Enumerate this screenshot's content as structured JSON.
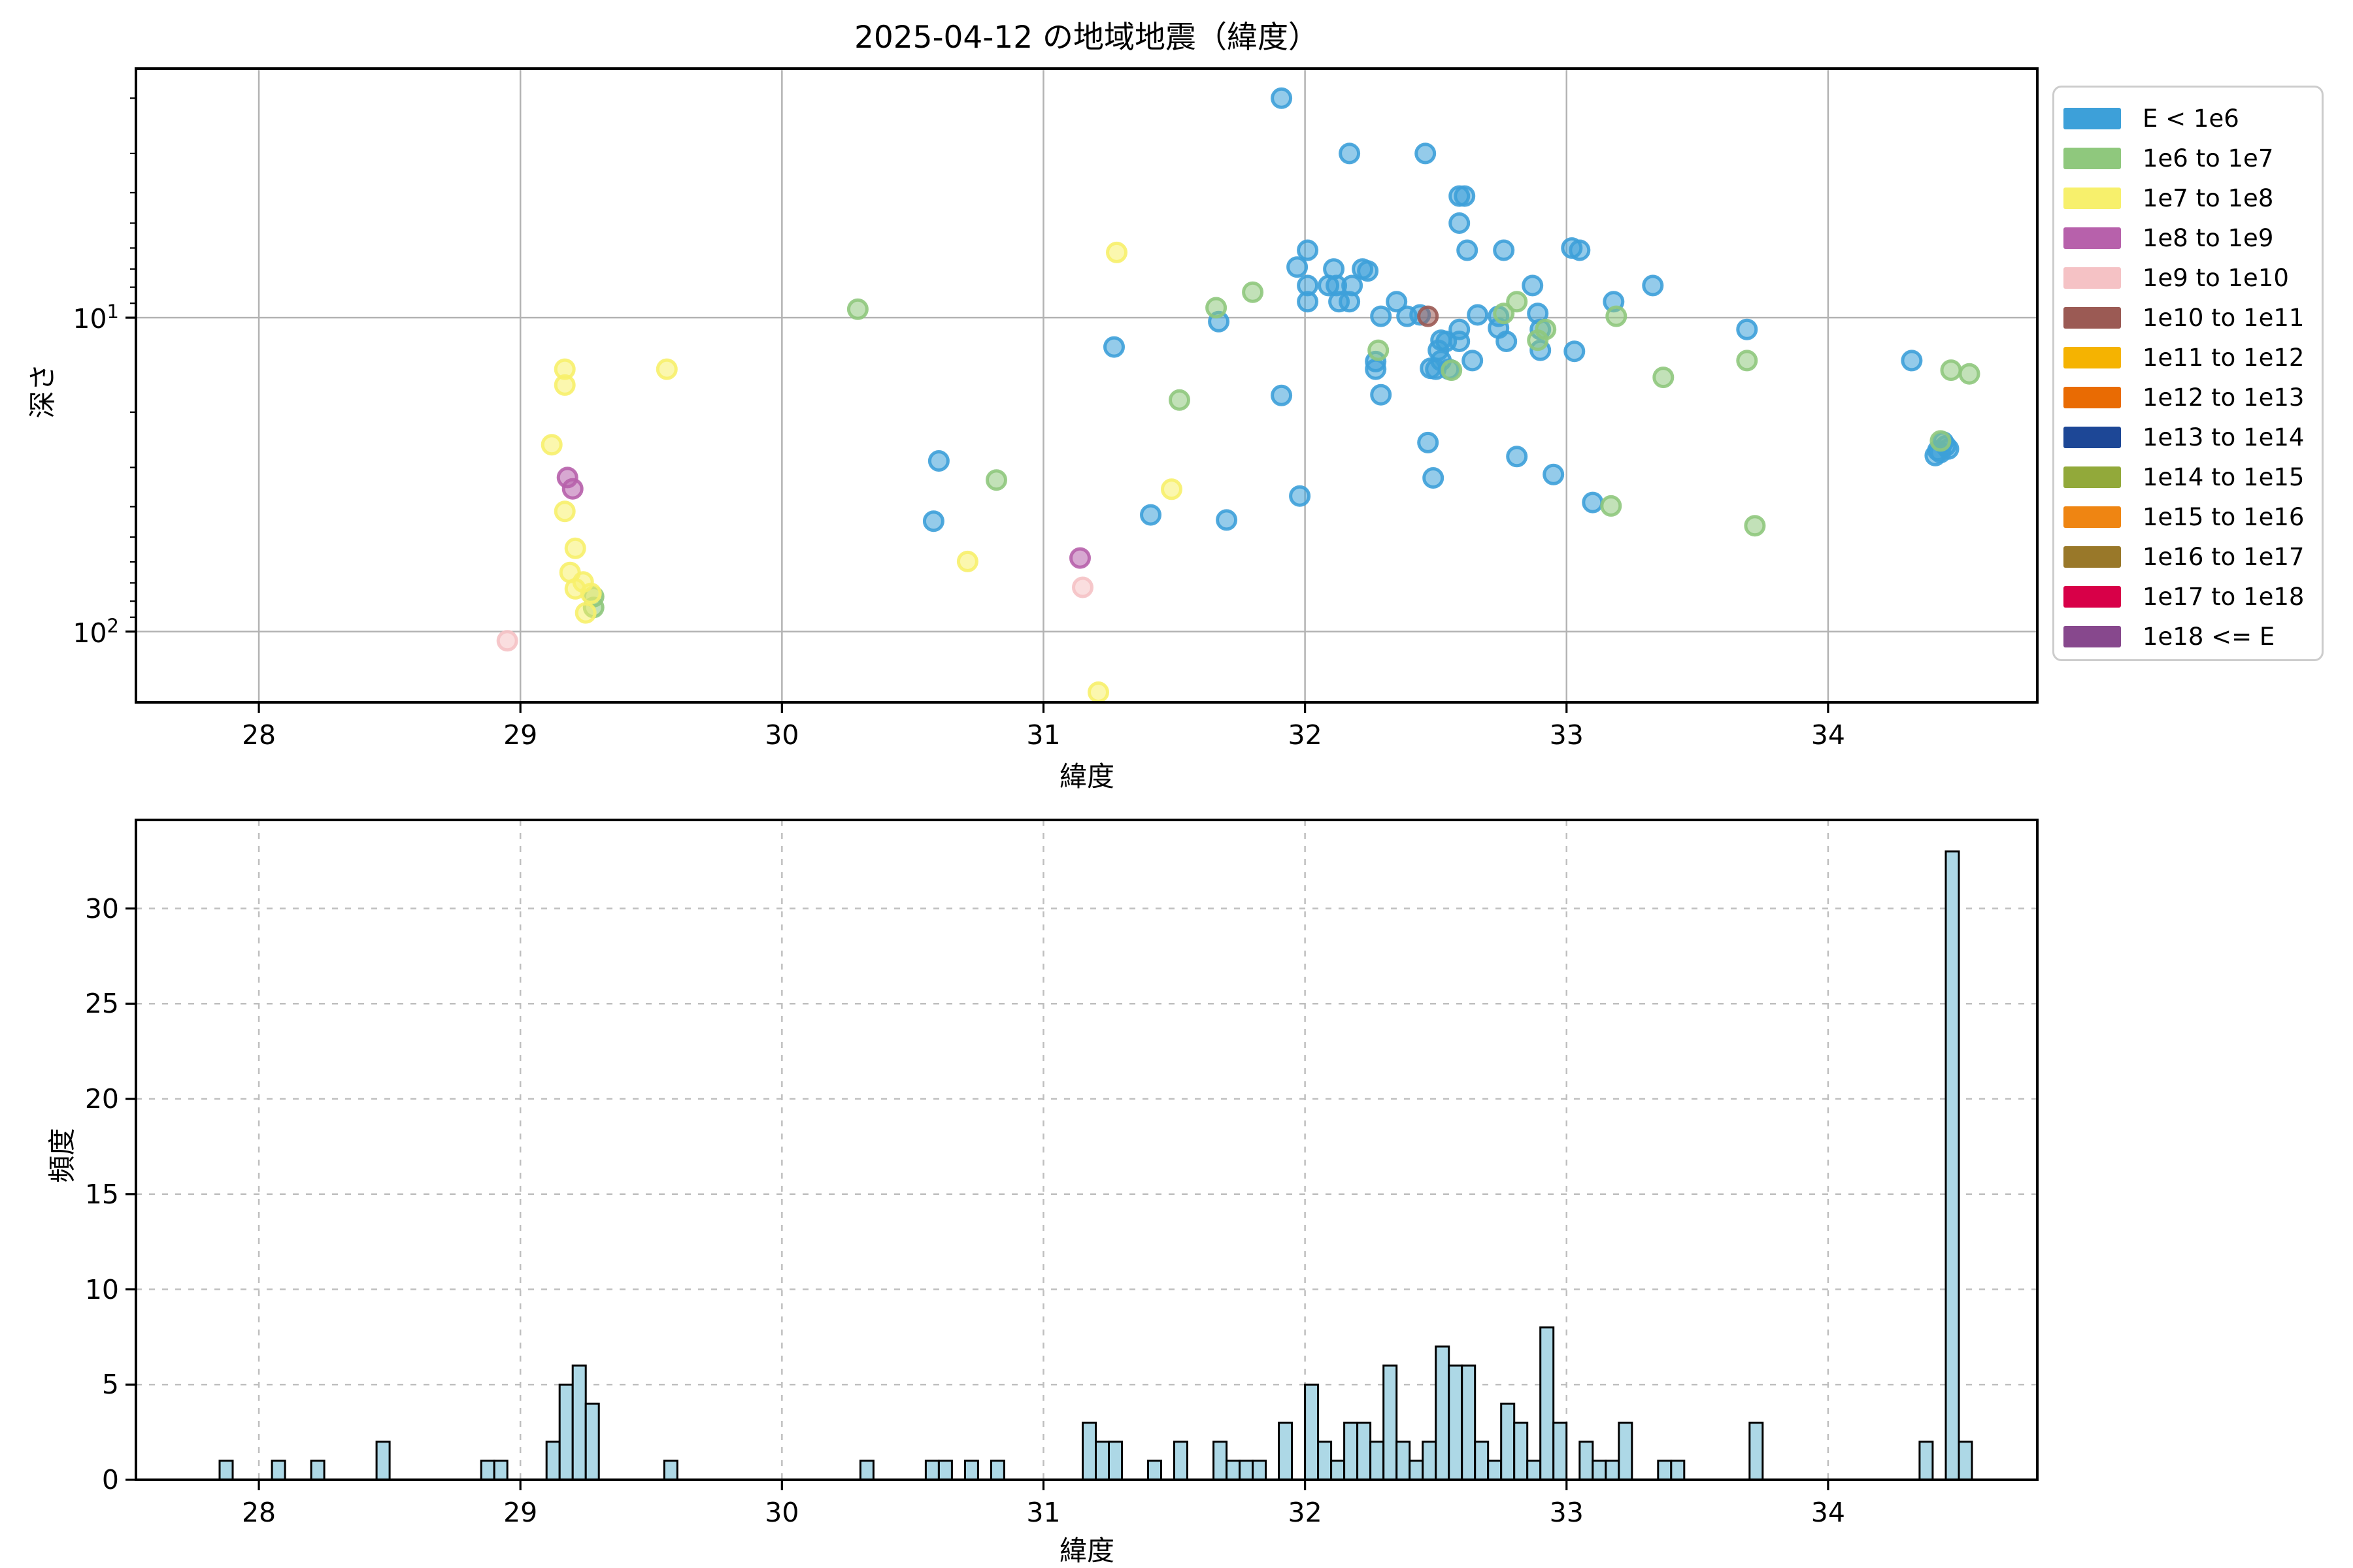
{
  "figure_title": "2025-04-12 の地域地震（緯度）",
  "chart_data": [
    {
      "type": "scatter",
      "title": "2025-04-12 の地域地震（緯度）",
      "xlabel": "緯度",
      "ylabel": "深さ",
      "xlim": [
        27.53,
        34.8
      ],
      "x_ticks": [
        28,
        29,
        30,
        31,
        32,
        33,
        34
      ],
      "yscale": "log",
      "y_inverted": true,
      "ylim_top": 1.61,
      "ylim_bottom": 168,
      "y_major_ticks": [
        {
          "value": 10,
          "base": "10",
          "exp": "1"
        },
        {
          "value": 100,
          "base": "10",
          "exp": "2"
        }
      ],
      "y_minor_ticks": [
        2,
        3,
        4,
        5,
        6,
        7,
        8,
        9,
        20,
        30,
        40,
        50,
        60,
        70,
        80,
        90
      ],
      "grid": "solid",
      "series": [
        {
          "name": "E < 1e6",
          "color": "#3DA0D9",
          "points": [
            [
              31.91,
              2.0
            ],
            [
              32.17,
              3.0
            ],
            [
              32.46,
              3.0
            ],
            [
              32.59,
              4.1
            ],
            [
              32.61,
              4.1
            ],
            [
              32.59,
              5.0
            ],
            [
              32.01,
              6.1
            ],
            [
              32.62,
              6.1
            ],
            [
              32.76,
              6.1
            ],
            [
              33.02,
              6.0
            ],
            [
              33.05,
              6.1
            ],
            [
              31.97,
              6.9
            ],
            [
              32.11,
              7.0
            ],
            [
              32.22,
              7.0
            ],
            [
              32.24,
              7.1
            ],
            [
              32.01,
              7.9
            ],
            [
              32.09,
              7.9
            ],
            [
              32.12,
              7.9
            ],
            [
              32.18,
              7.9
            ],
            [
              32.87,
              7.9
            ],
            [
              33.33,
              7.9
            ],
            [
              32.01,
              8.9
            ],
            [
              32.13,
              8.9
            ],
            [
              32.17,
              8.9
            ],
            [
              32.35,
              8.9
            ],
            [
              33.18,
              8.9
            ],
            [
              32.29,
              9.9
            ],
            [
              32.39,
              9.9
            ],
            [
              32.44,
              9.8
            ],
            [
              32.66,
              9.8
            ],
            [
              32.74,
              9.9
            ],
            [
              32.89,
              9.7
            ],
            [
              32.74,
              10.8
            ],
            [
              32.9,
              10.9
            ],
            [
              32.59,
              10.9
            ],
            [
              33.69,
              10.9
            ],
            [
              32.52,
              11.8
            ],
            [
              32.54,
              11.9
            ],
            [
              32.59,
              11.9
            ],
            [
              32.77,
              11.9
            ],
            [
              32.51,
              12.7
            ],
            [
              32.9,
              12.7
            ],
            [
              33.03,
              12.8
            ],
            [
              32.27,
              13.8
            ],
            [
              32.52,
              13.7
            ],
            [
              32.64,
              13.7
            ],
            [
              34.32,
              13.7
            ],
            [
              32.27,
              14.6
            ],
            [
              32.48,
              14.5
            ],
            [
              32.5,
              14.6
            ],
            [
              32.55,
              14.6
            ],
            [
              30.6,
              28.6
            ],
            [
              30.58,
              44.5
            ],
            [
              31.27,
              12.4
            ],
            [
              31.41,
              42.5
            ],
            [
              31.67,
              10.3
            ],
            [
              31.7,
              44.1
            ],
            [
              31.91,
              17.7
            ],
            [
              32.29,
              17.6
            ],
            [
              32.47,
              25.0
            ],
            [
              32.81,
              27.7
            ],
            [
              32.49,
              32.4
            ],
            [
              32.95,
              31.6
            ],
            [
              31.98,
              37.0
            ],
            [
              33.1,
              38.8
            ],
            [
              34.44,
              24.9
            ],
            [
              34.46,
              26.2
            ],
            [
              34.42,
              26.5
            ],
            [
              34.41,
              27.5
            ],
            [
              34.45,
              25.6
            ],
            [
              34.43,
              26.9
            ]
          ]
        },
        {
          "name": "1e6 to 1e7",
          "color": "#8FC87D",
          "points": [
            [
              29.28,
              77.4
            ],
            [
              29.28,
              83.8
            ],
            [
              30.29,
              9.4
            ],
            [
              30.82,
              32.9
            ],
            [
              31.52,
              18.3
            ],
            [
              31.66,
              9.3
            ],
            [
              31.8,
              8.3
            ],
            [
              32.28,
              12.7
            ],
            [
              32.56,
              14.7
            ],
            [
              32.76,
              9.7
            ],
            [
              32.81,
              8.9
            ],
            [
              32.92,
              10.9
            ],
            [
              32.89,
              11.8
            ],
            [
              33.17,
              39.8
            ],
            [
              33.19,
              9.9
            ],
            [
              33.37,
              15.5
            ],
            [
              33.69,
              13.7
            ],
            [
              33.72,
              46.0
            ],
            [
              34.47,
              14.7
            ],
            [
              34.43,
              24.7
            ],
            [
              34.54,
              15.1
            ]
          ]
        },
        {
          "name": "1e7 to 1e8",
          "color": "#F7F06C",
          "points": [
            [
              29.17,
              14.6
            ],
            [
              29.17,
              16.4
            ],
            [
              29.56,
              14.6
            ],
            [
              29.12,
              25.4
            ],
            [
              29.17,
              41.4
            ],
            [
              29.21,
              54.3
            ],
            [
              29.19,
              64.8
            ],
            [
              29.24,
              69.5
            ],
            [
              29.21,
              73.1
            ],
            [
              29.27,
              75.6
            ],
            [
              29.25,
              87.2
            ],
            [
              30.71,
              59.8
            ],
            [
              31.49,
              35.2
            ],
            [
              31.28,
              6.2
            ],
            [
              31.21,
              156
            ]
          ]
        },
        {
          "name": "1e8 to 1e9",
          "color": "#B761AB",
          "points": [
            [
              29.18,
              32.3
            ],
            [
              29.2,
              35.1
            ],
            [
              31.14,
              58.3
            ]
          ]
        },
        {
          "name": "1e9 to 1e10",
          "color": "#F5C2C5",
          "points": [
            [
              28.95,
              107
            ],
            [
              31.15,
              72.3
            ]
          ]
        },
        {
          "name": "1e10 to 1e11",
          "color": "#9B5A54",
          "points": [
            [
              32.47,
              9.9
            ]
          ]
        }
      ]
    },
    {
      "type": "histogram",
      "xlabel": "緯度",
      "ylabel": "頻度",
      "xlim": [
        27.53,
        34.8
      ],
      "x_ticks": [
        28,
        29,
        30,
        31,
        32,
        33,
        34
      ],
      "ylim": [
        0,
        34.65
      ],
      "y_ticks": [
        0,
        5,
        10,
        15,
        20,
        25,
        30
      ],
      "grid": "dashed",
      "bar_color": "#ADD8E6",
      "bar_edge": "#000000",
      "bin_width": 0.05,
      "bars": [
        [
          27.85,
          1
        ],
        [
          28.05,
          1
        ],
        [
          28.2,
          1
        ],
        [
          28.45,
          2
        ],
        [
          28.85,
          1
        ],
        [
          28.9,
          1
        ],
        [
          29.1,
          2
        ],
        [
          29.15,
          5
        ],
        [
          29.2,
          6
        ],
        [
          29.25,
          4
        ],
        [
          29.55,
          1
        ],
        [
          30.3,
          1
        ],
        [
          30.55,
          1
        ],
        [
          30.6,
          1
        ],
        [
          30.7,
          1
        ],
        [
          30.8,
          1
        ],
        [
          31.15,
          3
        ],
        [
          31.2,
          2
        ],
        [
          31.25,
          2
        ],
        [
          31.4,
          1
        ],
        [
          31.5,
          2
        ],
        [
          31.65,
          2
        ],
        [
          31.7,
          1
        ],
        [
          31.75,
          1
        ],
        [
          31.8,
          1
        ],
        [
          31.9,
          3
        ],
        [
          32.0,
          5
        ],
        [
          32.05,
          2
        ],
        [
          32.1,
          1
        ],
        [
          32.15,
          3
        ],
        [
          32.2,
          3
        ],
        [
          32.25,
          2
        ],
        [
          32.3,
          6
        ],
        [
          32.35,
          2
        ],
        [
          32.4,
          1
        ],
        [
          32.45,
          2
        ],
        [
          32.5,
          7
        ],
        [
          32.55,
          6
        ],
        [
          32.6,
          6
        ],
        [
          32.65,
          2
        ],
        [
          32.7,
          1
        ],
        [
          32.75,
          4
        ],
        [
          32.8,
          3
        ],
        [
          32.85,
          1
        ],
        [
          32.9,
          8
        ],
        [
          32.95,
          3
        ],
        [
          33.05,
          2
        ],
        [
          33.1,
          1
        ],
        [
          33.15,
          1
        ],
        [
          33.2,
          3
        ],
        [
          33.35,
          1
        ],
        [
          33.4,
          1
        ],
        [
          33.7,
          3
        ],
        [
          34.35,
          2
        ],
        [
          34.45,
          33
        ],
        [
          34.5,
          2
        ]
      ]
    }
  ],
  "legend": {
    "entries": [
      {
        "label": "E < 1e6",
        "color": "#3DA0D9"
      },
      {
        "label": "1e6 to 1e7",
        "color": "#8FC87D"
      },
      {
        "label": "1e7 to 1e8",
        "color": "#F7F06C"
      },
      {
        "label": "1e8 to 1e9",
        "color": "#B761AB"
      },
      {
        "label": "1e9 to 1e10",
        "color": "#F5C2C5"
      },
      {
        "label": "1e10 to 1e11",
        "color": "#9B5A54"
      },
      {
        "label": "1e11 to 1e12",
        "color": "#F5B301"
      },
      {
        "label": "1e12 to 1e13",
        "color": "#E96B03"
      },
      {
        "label": "1e13 to 1e14",
        "color": "#1D4796"
      },
      {
        "label": "1e14 to 1e15",
        "color": "#92A93A"
      },
      {
        "label": "1e15 to 1e16",
        "color": "#EF8512"
      },
      {
        "label": "1e16 to 1e17",
        "color": "#997829"
      },
      {
        "label": "1e17 to 1e18",
        "color": "#D80048"
      },
      {
        "label": "1e18 <= E",
        "color": "#87488D"
      }
    ]
  },
  "layout_colors": {
    "grid": "#B3B3B3",
    "dashed_grid": "#BFBFBF",
    "spine": "#000000",
    "background": "#FFFFFF"
  }
}
